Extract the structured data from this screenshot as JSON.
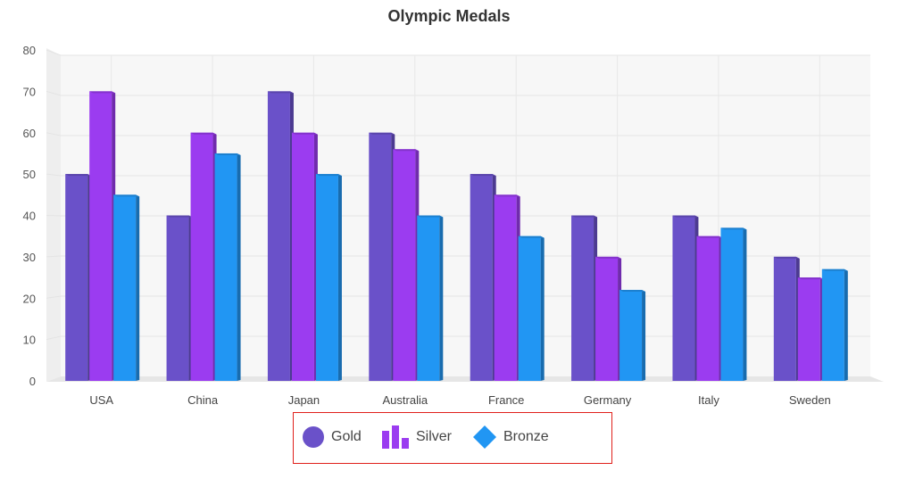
{
  "chart_data": {
    "type": "bar",
    "title": "Olympic Medals",
    "categories": [
      "USA",
      "China",
      "Japan",
      "Australia",
      "France",
      "Germany",
      "Italy",
      "Sweden"
    ],
    "series": [
      {
        "name": "Gold",
        "values": [
          50,
          40,
          70,
          60,
          50,
          40,
          40,
          30
        ],
        "color": "#6a51c9",
        "legend_icon": "circle-icon"
      },
      {
        "name": "Silver",
        "values": [
          70,
          60,
          60,
          56,
          45,
          30,
          35,
          25
        ],
        "color": "#9b3cf0",
        "legend_icon": "bar-chart-icon"
      },
      {
        "name": "Bronze",
        "values": [
          45,
          55,
          50,
          40,
          35,
          22,
          37,
          27
        ],
        "color": "#2196f3",
        "legend_icon": "diamond-icon"
      }
    ],
    "ylim": [
      0,
      80
    ],
    "yticks": [
      0,
      10,
      20,
      30,
      40,
      50,
      60,
      70,
      80
    ],
    "grid": true,
    "legend_position": "bottom-center",
    "xlabel": "",
    "ylabel": ""
  }
}
